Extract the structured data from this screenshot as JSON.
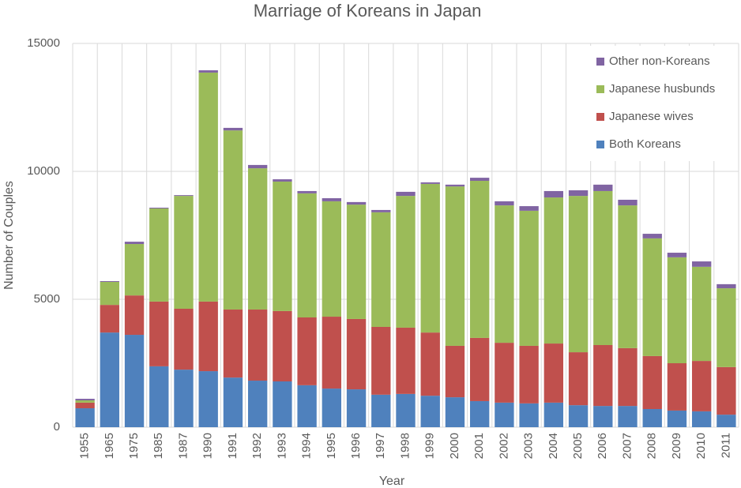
{
  "chart_data": {
    "type": "bar",
    "stacked": true,
    "title": "Marriage of Koreans in Japan",
    "x_label": "Year",
    "y_label": "Number of Couples",
    "categories": [
      "1955",
      "1965",
      "1975",
      "1985",
      "1987",
      "1990",
      "1991",
      "1992",
      "1993",
      "1994",
      "1995",
      "1996",
      "1997",
      "1998",
      "1999",
      "2000",
      "2001",
      "2002",
      "2003",
      "2004",
      "2005",
      "2006",
      "2007",
      "2008",
      "2009",
      "2010",
      "2011"
    ],
    "series": [
      {
        "name": "Both Koreans",
        "color": "#4f81bd",
        "values": [
          740,
          3700,
          3610,
          2380,
          2250,
          2190,
          1940,
          1820,
          1790,
          1640,
          1510,
          1480,
          1270,
          1300,
          1230,
          1170,
          1020,
          960,
          930,
          960,
          860,
          830,
          830,
          710,
          650,
          620,
          490
        ]
      },
      {
        "name": "Japanese wives",
        "color": "#c0504d",
        "values": [
          220,
          1080,
          1540,
          2530,
          2380,
          2720,
          2660,
          2780,
          2750,
          2650,
          2810,
          2750,
          2650,
          2590,
          2470,
          2010,
          2470,
          2340,
          2250,
          2310,
          2070,
          2380,
          2260,
          2070,
          1850,
          1970,
          1860
        ]
      },
      {
        "name": "Japanese husbunds",
        "color": "#9bbb59",
        "values": [
          90,
          900,
          2010,
          3640,
          4410,
          8950,
          7000,
          5520,
          5060,
          4850,
          4510,
          4470,
          4480,
          5150,
          5810,
          6230,
          6140,
          5370,
          5280,
          5710,
          6110,
          6020,
          5580,
          4600,
          4140,
          3680,
          3080
        ]
      },
      {
        "name": "Other non-Koreans",
        "color": "#8064a2",
        "values": [
          60,
          30,
          90,
          30,
          30,
          90,
          100,
          130,
          90,
          90,
          120,
          100,
          90,
          160,
          60,
          70,
          120,
          160,
          180,
          250,
          220,
          250,
          220,
          180,
          180,
          210,
          160
        ]
      }
    ],
    "ylim": [
      0,
      15000
    ],
    "yticks": [
      0,
      5000,
      10000,
      15000
    ],
    "grid": true,
    "legend": "top-right"
  }
}
